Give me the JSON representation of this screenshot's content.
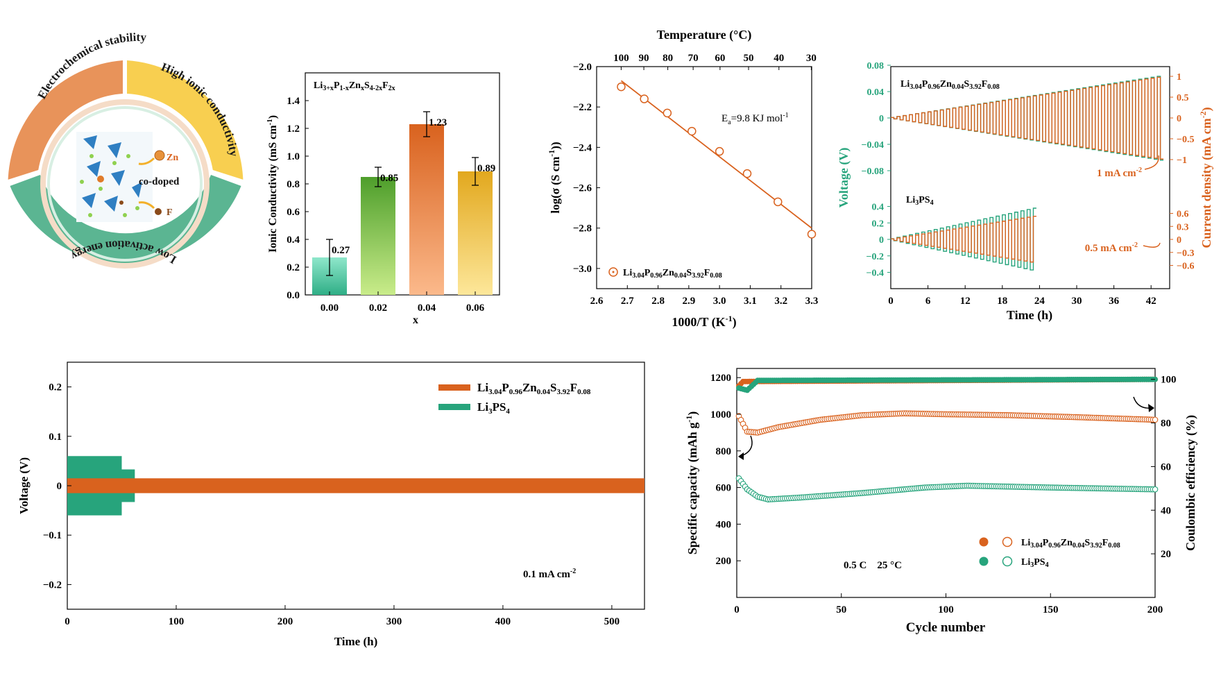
{
  "schematic": {
    "top_left": "Electrochemical stability",
    "top_right": "High ionic conductivity",
    "bottom": "Low activation energy",
    "zn": "Zn",
    "f": "F",
    "center": "co-doped",
    "colors": {
      "left": "#e8935a",
      "right": "#f8cf50",
      "bottom": "#5bb592"
    }
  },
  "chart_data": [
    {
      "id": "bar",
      "type": "bar",
      "title": "Li3+xP1-xZnxS4-2xF2x",
      "xlabel": "x",
      "ylabel": "Ionic Conductivity (mS cm-1)",
      "categories": [
        "0.00",
        "0.02",
        "0.04",
        "0.06"
      ],
      "values": [
        0.27,
        0.85,
        1.23,
        0.89
      ],
      "errors": [
        0.13,
        0.07,
        0.09,
        0.1
      ],
      "value_labels": [
        "0.27",
        "0.85",
        "1.23",
        "0.89"
      ],
      "ylim": [
        0,
        1.6
      ],
      "yticks": [
        "0.0",
        "0.2",
        "0.4",
        "0.6",
        "0.8",
        "1.0",
        "1.2",
        "1.4"
      ],
      "colors": [
        [
          "#8fe7cb",
          "#2fae86"
        ],
        [
          "#c9ec8a",
          "#4e9e2b"
        ],
        [
          "#fbb98b",
          "#d9621e"
        ],
        [
          "#fde79a",
          "#e2a81e"
        ]
      ]
    },
    {
      "id": "arrhenius",
      "type": "scatter",
      "xlabel": "1000/T (K-1)",
      "ylabel": "log(σ (S cm-1))",
      "top_label": "Temperature (°C)",
      "annotation": "Ea=9.8 KJ mol-1",
      "legend": "Li3.04P0.96Zn0.04S3.92F0.08",
      "xlim": [
        2.6,
        3.3
      ],
      "ylim": [
        -3.1,
        -2.0
      ],
      "xticks": [
        "2.6",
        "2.7",
        "2.8",
        "2.9",
        "3.0",
        "3.1",
        "3.2",
        "3.3"
      ],
      "yticks": [
        "-2.0",
        "-2.2",
        "-2.4",
        "-2.6",
        "-2.8",
        "-3.0"
      ],
      "top_ticks": [
        "100",
        "90",
        "80",
        "70",
        "60",
        "50",
        "40",
        "30"
      ],
      "x": [
        2.68,
        2.755,
        2.83,
        2.91,
        3.0,
        3.09,
        3.19,
        3.3
      ],
      "y": [
        -2.1,
        -2.16,
        -2.23,
        -2.32,
        -2.42,
        -2.53,
        -2.67,
        -2.83
      ],
      "fit": [
        [
          2.68,
          -2.07
        ],
        [
          3.3,
          -2.8
        ]
      ],
      "color": "#d9621e"
    },
    {
      "id": "polarization",
      "type": "line",
      "xlabel": "Time (h)",
      "ylabel_left": "Voltage (V)",
      "ylabel_right": "Current density (mA cm-2)",
      "xlim": [
        0,
        45
      ],
      "xticks": [
        "0",
        "6",
        "12",
        "18",
        "24",
        "30",
        "36",
        "42"
      ],
      "series": [
        {
          "name": "Li3.04P0.96Zn0.04S3.92F0.08",
          "voltage_max": 0.076,
          "current_amplitude": 1,
          "duration": 44,
          "current_label": "1 mA cm-2"
        },
        {
          "name": "Li3PS4",
          "voltage_max": 0.45,
          "current_amplitude": 0.5,
          "duration": 23.5,
          "current_label": "0.5 mA cm-2"
        }
      ],
      "upper_left_ticks": [
        "0.08",
        "0.04",
        "0",
        "-0.04",
        "-0.08"
      ],
      "upper_right_ticks": [
        "1",
        "0.5",
        "0",
        "-0.5",
        "-1"
      ],
      "lower_left_ticks": [
        "0.4",
        "0.2",
        "0",
        "-0.2",
        "-0.4"
      ],
      "lower_right_ticks": [
        "0.6",
        "0.3",
        "0",
        "-0.3",
        "-0.6"
      ],
      "colors": {
        "voltage": "#27a47c",
        "current": "#d9621e"
      }
    },
    {
      "id": "cycling",
      "type": "line",
      "xlabel": "Time (h)",
      "ylabel": "Voltage (V)",
      "annotation": "0.1 mA cm-2",
      "xlim": [
        0,
        530
      ],
      "ylim": [
        -0.25,
        0.25
      ],
      "xticks": [
        "0",
        "100",
        "200",
        "300",
        "400",
        "500"
      ],
      "yticks": [
        "0.2",
        "0.1",
        "0",
        "-0.1",
        "-0.2"
      ],
      "series": [
        {
          "name": "Li3.04P0.96Zn0.04S3.92F0.08",
          "amplitude": 0.015,
          "end_time": 530,
          "color": "#d9621e"
        },
        {
          "name": "Li3PS4",
          "amplitude": 0.06,
          "end_time": 62,
          "color": "#27a47c"
        }
      ]
    },
    {
      "id": "capacity",
      "type": "scatter",
      "xlabel": "Cycle number",
      "ylabel_left": "Specific capacity (mAh g-1)",
      "ylabel_right": "Coulombic efficiency (%)",
      "annotation": "0.5 C    25 °C",
      "xlim": [
        0,
        200
      ],
      "ylim_left": [
        0,
        1250
      ],
      "ylim_right": [
        0,
        105
      ],
      "xticks": [
        "0",
        "50",
        "100",
        "150",
        "200"
      ],
      "yticks_left": [
        "200",
        "400",
        "600",
        "800",
        "1000",
        "1200"
      ],
      "yticks_right": [
        "20",
        "40",
        "60",
        "80",
        "100"
      ],
      "series": [
        {
          "name": "Li3.04P0.96Zn0.04S3.92F0.08",
          "capacity": [
            [
              1,
              990
            ],
            [
              5,
              905
            ],
            [
              10,
              900
            ],
            [
              20,
              930
            ],
            [
              40,
              970
            ],
            [
              60,
              995
            ],
            [
              80,
              1005
            ],
            [
              100,
              1000
            ],
            [
              130,
              995
            ],
            [
              160,
              985
            ],
            [
              200,
              970
            ]
          ],
          "efficiency": [
            [
              1,
              97
            ],
            [
              3,
              99
            ],
            [
              200,
              100
            ]
          ],
          "color": "#d9621e"
        },
        {
          "name": "Li3PS4",
          "capacity": [
            [
              1,
              650
            ],
            [
              5,
              590
            ],
            [
              10,
              550
            ],
            [
              15,
              535
            ],
            [
              30,
              545
            ],
            [
              60,
              570
            ],
            [
              90,
              600
            ],
            [
              110,
              610
            ],
            [
              150,
              600
            ],
            [
              200,
              590
            ]
          ],
          "efficiency": [
            [
              1,
              96
            ],
            [
              5,
              95
            ],
            [
              10,
              99.5
            ],
            [
              200,
              100
            ]
          ],
          "color": "#27a47c"
        }
      ]
    }
  ]
}
